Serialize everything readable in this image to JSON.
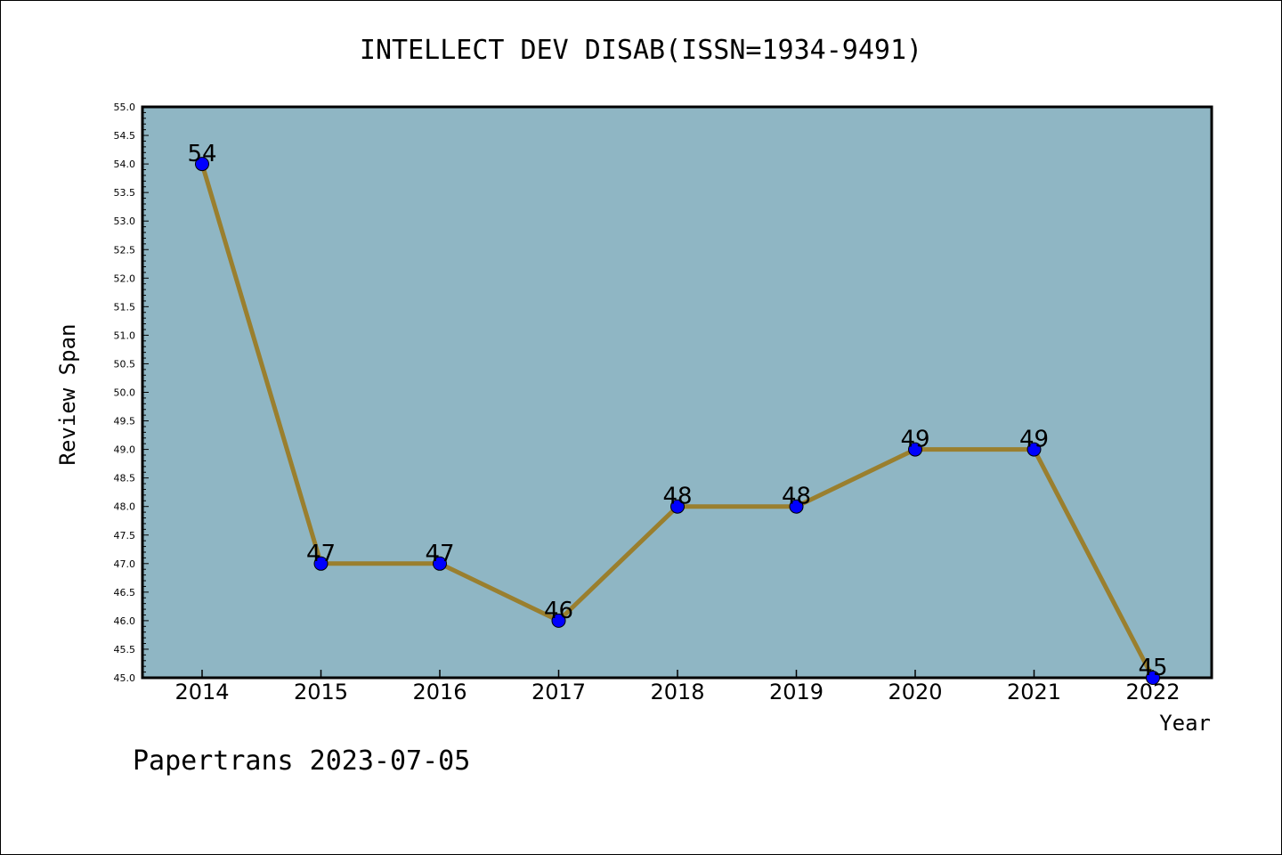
{
  "chart_data": {
    "type": "line",
    "title": "INTELLECT DEV DISAB(ISSN=1934-9491)",
    "xlabel": "Year",
    "ylabel": "Review Span",
    "categories": [
      "2014",
      "2015",
      "2016",
      "2017",
      "2018",
      "2019",
      "2020",
      "2021",
      "2022"
    ],
    "values": [
      54,
      47,
      47,
      46,
      48,
      48,
      49,
      49,
      45
    ],
    "data_labels": [
      "54",
      "47",
      "47",
      "46",
      "48",
      "48",
      "49",
      "49",
      "45"
    ],
    "ylim": [
      45.0,
      55.0
    ],
    "yticks": [
      "45.0",
      "45.5",
      "46.0",
      "46.5",
      "47.0",
      "47.5",
      "48.0",
      "48.5",
      "49.0",
      "49.5",
      "50.0",
      "50.5",
      "51.0",
      "51.5",
      "52.0",
      "52.5",
      "53.0",
      "53.5",
      "54.0",
      "54.5",
      "55.0"
    ],
    "grid": false,
    "colors": {
      "plot_background": "#8fb6c4",
      "line": "#9a7f2e",
      "marker": "#0000ff"
    }
  },
  "footer": {
    "text": "Papertrans 2023-07-05"
  }
}
